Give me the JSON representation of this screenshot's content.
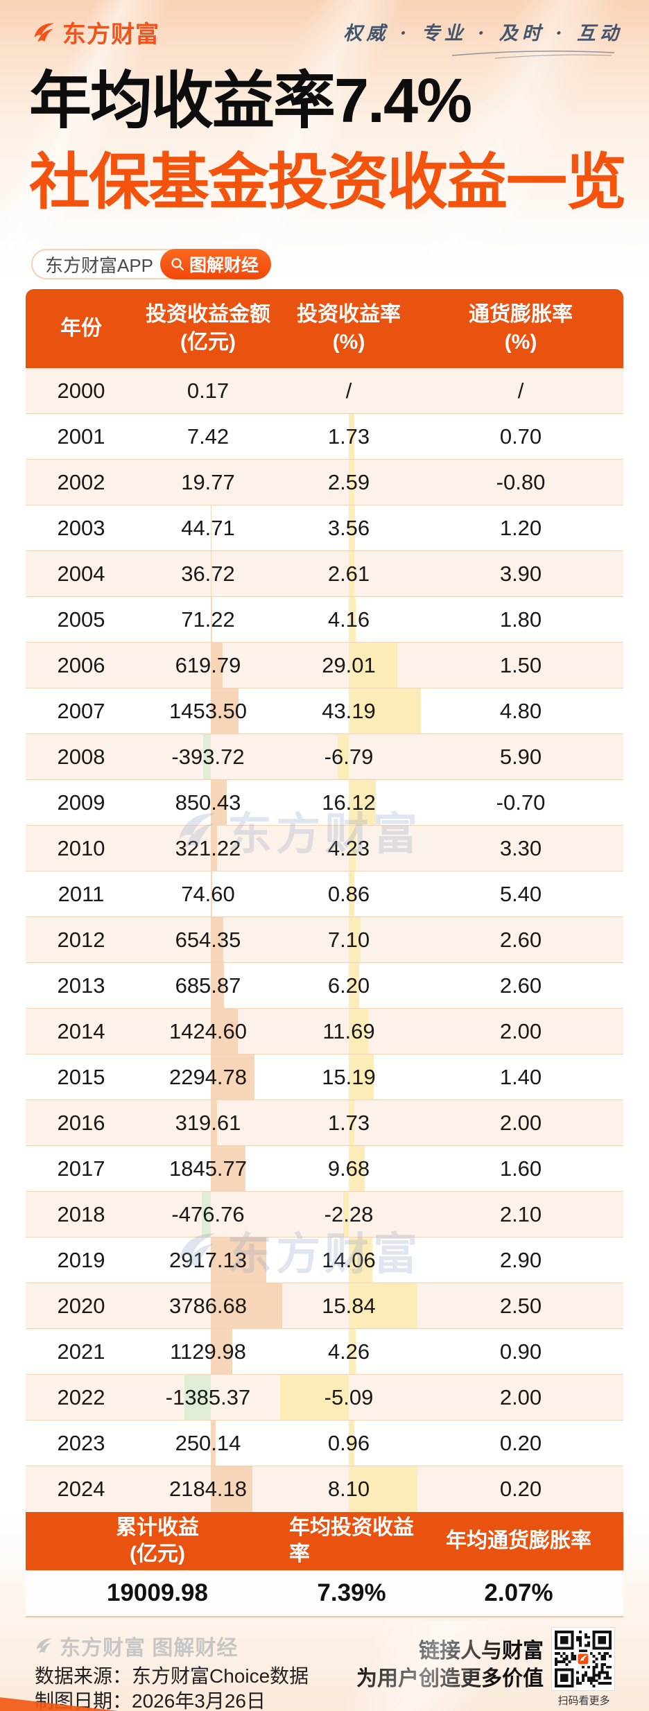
{
  "brand": {
    "logo_text": "东方财富",
    "tagline": "权威 · 专业 · 及时 · 互动"
  },
  "title": {
    "line1": "年均收益率7.4%",
    "line2": "社保基金投资收益一览"
  },
  "badges": {
    "app_label": "东方财富APP",
    "tag_label": "图解财经"
  },
  "table": {
    "columns": [
      {
        "label": "年份",
        "unit": ""
      },
      {
        "label": "投资收益金额",
        "unit": "(亿元)"
      },
      {
        "label": "投资收益率",
        "unit": "(%)"
      },
      {
        "label": "通货膨胀率",
        "unit": "(%)"
      }
    ],
    "rows": [
      {
        "year": "2000",
        "amount": "0.17",
        "rate": "/",
        "inflation": "/"
      },
      {
        "year": "2001",
        "amount": "7.42",
        "rate": "1.73",
        "inflation": "0.70"
      },
      {
        "year": "2002",
        "amount": "19.77",
        "rate": "2.59",
        "inflation": "-0.80"
      },
      {
        "year": "2003",
        "amount": "44.71",
        "rate": "3.56",
        "inflation": "1.20"
      },
      {
        "year": "2004",
        "amount": "36.72",
        "rate": "2.61",
        "inflation": "3.90"
      },
      {
        "year": "2005",
        "amount": "71.22",
        "rate": "4.16",
        "inflation": "1.80"
      },
      {
        "year": "2006",
        "amount": "619.79",
        "rate": "29.01",
        "inflation": "1.50"
      },
      {
        "year": "2007",
        "amount": "1453.50",
        "rate": "43.19",
        "inflation": "4.80"
      },
      {
        "year": "2008",
        "amount": "-393.72",
        "rate": "-6.79",
        "inflation": "5.90"
      },
      {
        "year": "2009",
        "amount": "850.43",
        "rate": "16.12",
        "inflation": "-0.70"
      },
      {
        "year": "2010",
        "amount": "321.22",
        "rate": "4.23",
        "inflation": "3.30"
      },
      {
        "year": "2011",
        "amount": "74.60",
        "rate": "0.86",
        "inflation": "5.40"
      },
      {
        "year": "2012",
        "amount": "654.35",
        "rate": "7.10",
        "inflation": "2.60"
      },
      {
        "year": "2013",
        "amount": "685.87",
        "rate": "6.20",
        "inflation": "2.60"
      },
      {
        "year": "2014",
        "amount": "1424.60",
        "rate": "11.69",
        "inflation": "2.00"
      },
      {
        "year": "2015",
        "amount": "2294.78",
        "rate": "15.19",
        "inflation": "1.40"
      },
      {
        "year": "2016",
        "amount": "319.61",
        "rate": "1.73",
        "inflation": "2.00"
      },
      {
        "year": "2017",
        "amount": "1845.77",
        "rate": "9.68",
        "inflation": "1.60"
      },
      {
        "year": "2018",
        "amount": "-476.76",
        "rate": "-2.28",
        "inflation": "2.10"
      },
      {
        "year": "2019",
        "amount": "2917.13",
        "rate": "14.06",
        "inflation": "2.90"
      },
      {
        "year": "2020",
        "amount": "3786.68",
        "rate": "15.84",
        "inflation": "2.50",
        "hl": true
      },
      {
        "year": "2021",
        "amount": "1129.98",
        "rate": "4.26",
        "inflation": "0.90"
      },
      {
        "year": "2022",
        "amount": "-1385.37",
        "rate": "-5.09",
        "inflation": "2.00",
        "hl": true
      },
      {
        "year": "2023",
        "amount": "250.14",
        "rate": "0.96",
        "inflation": "0.20"
      },
      {
        "year": "2024",
        "amount": "2184.18",
        "rate": "8.10",
        "inflation": "0.20",
        "hl": true
      }
    ]
  },
  "summary": {
    "columns": [
      {
        "label": "累计收益",
        "unit": "(亿元)"
      },
      {
        "label": "年均投资收益率",
        "unit": ""
      },
      {
        "label": "年均通货膨胀率",
        "unit": ""
      }
    ],
    "values": [
      "19009.98",
      "7.39%",
      "2.07%"
    ]
  },
  "watermark": {
    "text": "东方财富"
  },
  "footer": {
    "brand": "东方财富 图解财经",
    "source": "数据来源：东方财富Choice数据",
    "date": "制图日期：2026年3月26日",
    "slogan1": "链接人与财富",
    "slogan2": "为用户创造更多价值",
    "qr_caption": "扫码看更多"
  },
  "colors": {
    "accent": "#e9520f",
    "title_orange": "#f4530e",
    "amount_bar": "#f7d5b8",
    "amount_bar_negative": "#dfedd4",
    "rate_bar": "#fcedb8",
    "row_alt": "#fdf2ea"
  },
  "chart_data": {
    "type": "table",
    "title": "社保基金投资收益一览",
    "subtitle": "年均收益率7.4%",
    "columns": [
      "年份",
      "投资收益金额(亿元)",
      "投资收益率(%)",
      "通货膨胀率(%)"
    ],
    "categories": [
      2000,
      2001,
      2002,
      2003,
      2004,
      2005,
      2006,
      2007,
      2008,
      2009,
      2010,
      2011,
      2012,
      2013,
      2014,
      2015,
      2016,
      2017,
      2018,
      2019,
      2020,
      2021,
      2022,
      2023,
      2024
    ],
    "series": [
      {
        "name": "投资收益金额(亿元)",
        "values": [
          0.17,
          7.42,
          19.77,
          44.71,
          36.72,
          71.22,
          619.79,
          1453.5,
          -393.72,
          850.43,
          321.22,
          74.6,
          654.35,
          685.87,
          1424.6,
          2294.78,
          319.61,
          1845.77,
          -476.76,
          2917.13,
          3786.68,
          1129.98,
          -1385.37,
          250.14,
          2184.18
        ]
      },
      {
        "name": "投资收益率(%)",
        "values": [
          null,
          1.73,
          2.59,
          3.56,
          2.61,
          4.16,
          29.01,
          43.19,
          -6.79,
          16.12,
          4.23,
          0.86,
          7.1,
          6.2,
          11.69,
          15.19,
          1.73,
          9.68,
          -2.28,
          14.06,
          15.84,
          4.26,
          -5.09,
          0.96,
          8.1
        ]
      },
      {
        "name": "通货膨胀率(%)",
        "values": [
          null,
          0.7,
          -0.8,
          1.2,
          3.9,
          1.8,
          1.5,
          4.8,
          5.9,
          -0.7,
          3.3,
          5.4,
          2.6,
          2.6,
          2.0,
          1.4,
          2.0,
          1.6,
          2.1,
          2.9,
          2.5,
          0.9,
          2.0,
          0.2,
          0.2
        ]
      }
    ],
    "summary": {
      "累计收益(亿元)": 19009.98,
      "年均投资收益率": "7.39%",
      "年均通货膨胀率": "2.07%"
    }
  }
}
